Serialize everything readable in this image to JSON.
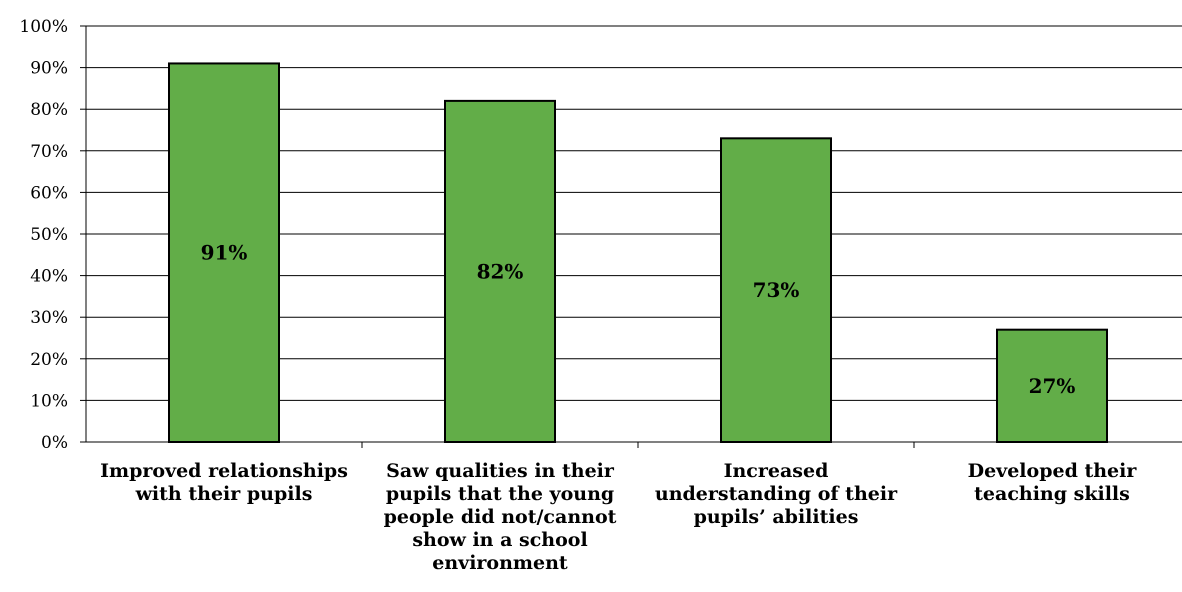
{
  "chart_data": {
    "type": "bar",
    "title": "",
    "xlabel": "",
    "ylabel": "",
    "ylim": [
      0,
      100
    ],
    "y_tick_step": 10,
    "y_tick_format": "percent",
    "grid": true,
    "legend": "none",
    "bar_color": "#62ad48",
    "bar_outline_color": "#000000",
    "categories": [
      "Improved relationships with their pupils",
      "Saw qualities in their pupils that the young people did not/cannot show in a school environment",
      "Increased understanding of their pupils’ abilities",
      "Developed their teaching skills"
    ],
    "category_label_lines": [
      [
        "Improved relationships",
        "with their pupils"
      ],
      [
        "Saw qualities in their",
        "pupils that the young",
        "people did not/cannot",
        "show in a school",
        "environment"
      ],
      [
        "Increased",
        "understanding of their",
        "pupils’ abilities"
      ],
      [
        "Developed their",
        "teaching skills"
      ]
    ],
    "values": [
      91,
      82,
      73,
      27
    ],
    "data_labels": [
      "91%",
      "82%",
      "73%",
      "27%"
    ]
  }
}
